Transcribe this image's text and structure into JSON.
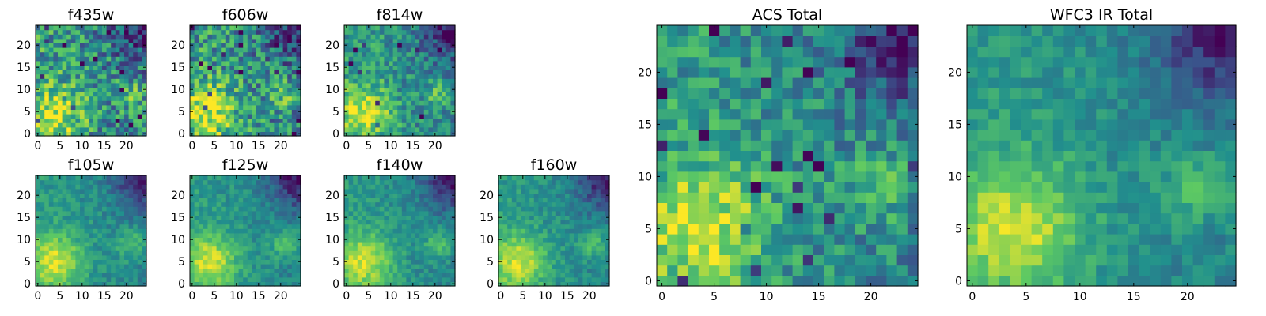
{
  "chart_data": [
    {
      "type": "heatmap",
      "title": "f435w",
      "xlim": [
        0,
        25
      ],
      "ylim": [
        0,
        25
      ],
      "xticks": [
        0,
        5,
        10,
        15,
        20
      ],
      "yticks": [
        0,
        5,
        10,
        15,
        20
      ],
      "grid_size": [
        25,
        25
      ],
      "pattern": "noisy"
    },
    {
      "type": "heatmap",
      "title": "f606w",
      "xlim": [
        0,
        25
      ],
      "ylim": [
        0,
        25
      ],
      "xticks": [
        0,
        5,
        10,
        15,
        20
      ],
      "yticks": [
        0,
        5,
        10,
        15,
        20
      ],
      "grid_size": [
        25,
        25
      ],
      "pattern": "noisy"
    },
    {
      "type": "heatmap",
      "title": "f814w",
      "xlim": [
        0,
        25
      ],
      "ylim": [
        0,
        25
      ],
      "xticks": [
        0,
        5,
        10,
        15,
        20
      ],
      "yticks": [
        0,
        5,
        10,
        15,
        20
      ],
      "grid_size": [
        25,
        25
      ],
      "pattern": "mixed"
    },
    {
      "type": "heatmap",
      "title": "f105w",
      "xlim": [
        0,
        25
      ],
      "ylim": [
        0,
        25
      ],
      "xticks": [
        0,
        5,
        10,
        15,
        20
      ],
      "yticks": [
        0,
        5,
        10,
        15,
        20
      ],
      "grid_size": [
        25,
        25
      ],
      "pattern": "smooth"
    },
    {
      "type": "heatmap",
      "title": "f125w",
      "xlim": [
        0,
        25
      ],
      "ylim": [
        0,
        25
      ],
      "xticks": [
        0,
        5,
        10,
        15,
        20
      ],
      "yticks": [
        0,
        5,
        10,
        15,
        20
      ],
      "grid_size": [
        25,
        25
      ],
      "pattern": "smooth"
    },
    {
      "type": "heatmap",
      "title": "f140w",
      "xlim": [
        0,
        25
      ],
      "ylim": [
        0,
        25
      ],
      "xticks": [
        0,
        5,
        10,
        15,
        20
      ],
      "yticks": [
        0,
        5,
        10,
        15,
        20
      ],
      "grid_size": [
        25,
        25
      ],
      "pattern": "smooth"
    },
    {
      "type": "heatmap",
      "title": "f160w",
      "xlim": [
        0,
        25
      ],
      "ylim": [
        0,
        25
      ],
      "xticks": [
        0,
        5,
        10,
        15,
        20
      ],
      "yticks": [
        0,
        5,
        10,
        15,
        20
      ],
      "grid_size": [
        25,
        25
      ],
      "pattern": "smooth"
    },
    {
      "type": "heatmap",
      "title": "ACS Total",
      "xlim": [
        0,
        25
      ],
      "ylim": [
        0,
        25
      ],
      "xticks": [
        0,
        5,
        10,
        15,
        20
      ],
      "yticks": [
        0,
        5,
        10,
        15,
        20
      ],
      "grid_size": [
        25,
        25
      ],
      "pattern": "mixed"
    },
    {
      "type": "heatmap",
      "title": "WFC3 IR Total",
      "xlim": [
        0,
        25
      ],
      "ylim": [
        0,
        25
      ],
      "xticks": [
        0,
        5,
        10,
        15,
        20
      ],
      "yticks": [
        0,
        5,
        10,
        15,
        20
      ],
      "grid_size": [
        25,
        25
      ],
      "pattern": "smooth"
    }
  ],
  "colormap": [
    "#440154",
    "#3b528b",
    "#21908d",
    "#5dc963",
    "#fde725"
  ]
}
